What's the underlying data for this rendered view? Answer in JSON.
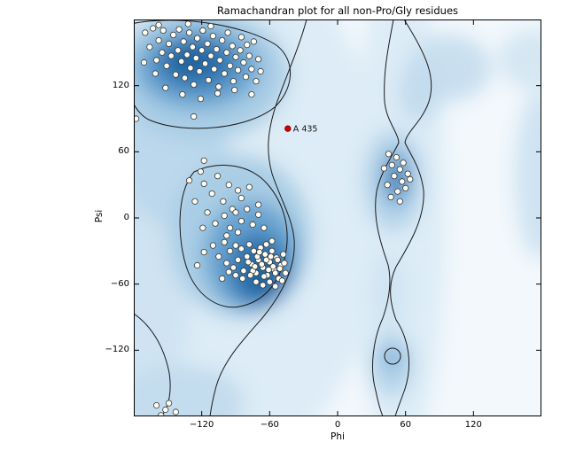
{
  "figure": {
    "title": "Ramachandran plot for all non-Pro/Gly residues"
  },
  "chart_data": {
    "type": "scatter",
    "title": "Ramachandran plot for all non-Pro/Gly residues",
    "xlabel": "Phi",
    "ylabel": "Psi",
    "xlim": [
      -180,
      180
    ],
    "ylim": [
      -180,
      180
    ],
    "xticks": [
      {
        "v": -120,
        "label": "−120"
      },
      {
        "v": -60,
        "label": "−60"
      },
      {
        "v": 0,
        "label": "0"
      },
      {
        "v": 60,
        "label": "60"
      },
      {
        "v": 120,
        "label": "120"
      }
    ],
    "yticks": [
      {
        "v": 120,
        "label": "120"
      },
      {
        "v": 60,
        "label": "60"
      },
      {
        "v": 0,
        "label": "0"
      },
      {
        "v": -60,
        "label": "−60"
      },
      {
        "v": -120,
        "label": "−120"
      }
    ],
    "grid": false,
    "legend": "none",
    "background": "Blues density colormap (favored/allowed Ramachandran regions) with black contour outlines",
    "colors": {
      "point_fill": "#fffef5",
      "point_stroke": "#3a3a3a",
      "contour_color": "#1a1a1a",
      "density_dark": "#1f639f",
      "density_mid": "#67a3d0",
      "density_light": "#ddecf6",
      "outlier_fill": "#d40000",
      "outlier_stroke": "#7a0000"
    },
    "points": [
      [
        -170,
        168
      ],
      [
        -166,
        155
      ],
      [
        -163,
        172
      ],
      [
        -160,
        143
      ],
      [
        -158,
        161
      ],
      [
        -155,
        150
      ],
      [
        -154,
        170
      ],
      [
        -151,
        138
      ],
      [
        -149,
        158
      ],
      [
        -147,
        147
      ],
      [
        -145,
        166
      ],
      [
        -143,
        130
      ],
      [
        -141,
        152
      ],
      [
        -140,
        171
      ],
      [
        -138,
        142
      ],
      [
        -136,
        160
      ],
      [
        -135,
        127
      ],
      [
        -133,
        148
      ],
      [
        -131,
        168
      ],
      [
        -130,
        136
      ],
      [
        -128,
        155
      ],
      [
        -127,
        121
      ],
      [
        -125,
        145
      ],
      [
        -124,
        163
      ],
      [
        -122,
        133
      ],
      [
        -120,
        152
      ],
      [
        -119,
        170
      ],
      [
        -117,
        140
      ],
      [
        -115,
        158
      ],
      [
        -114,
        125
      ],
      [
        -112,
        147
      ],
      [
        -110,
        165
      ],
      [
        -109,
        135
      ],
      [
        -107,
        153
      ],
      [
        -105,
        119
      ],
      [
        -104,
        143
      ],
      [
        -102,
        161
      ],
      [
        -100,
        131
      ],
      [
        -98,
        150
      ],
      [
        -97,
        168
      ],
      [
        -95,
        138
      ],
      [
        -93,
        156
      ],
      [
        -92,
        124
      ],
      [
        -90,
        146
      ],
      [
        -88,
        134
      ],
      [
        -86,
        152
      ],
      [
        -85,
        164
      ],
      [
        -83,
        141
      ],
      [
        -81,
        128
      ],
      [
        -80,
        157
      ],
      [
        -78,
        147
      ],
      [
        -76,
        135
      ],
      [
        -74,
        160
      ],
      [
        -72,
        124
      ],
      [
        -70,
        144
      ],
      [
        -68,
        133
      ],
      [
        -152,
        118
      ],
      [
        -137,
        112
      ],
      [
        -121,
        108
      ],
      [
        -106,
        113
      ],
      [
        -91,
        116
      ],
      [
        -76,
        112
      ],
      [
        -161,
        131
      ],
      [
        -171,
        141
      ],
      [
        -158,
        175
      ],
      [
        -132,
        176
      ],
      [
        -112,
        174
      ],
      [
        -127,
        92
      ],
      [
        -178,
        90
      ],
      [
        -121,
        42
      ],
      [
        -106,
        38
      ],
      [
        -96,
        30
      ],
      [
        -88,
        25
      ],
      [
        -111,
        22
      ],
      [
        -101,
        15
      ],
      [
        -93,
        8
      ],
      [
        -85,
        18
      ],
      [
        -78,
        28
      ],
      [
        -70,
        12
      ],
      [
        -131,
        34
      ],
      [
        -126,
        15
      ],
      [
        -118,
        31
      ],
      [
        -118,
        52
      ],
      [
        -115,
        5
      ],
      [
        -108,
        -5
      ],
      [
        -100,
        2
      ],
      [
        -95,
        -9
      ],
      [
        -90,
        5
      ],
      [
        -85,
        -3
      ],
      [
        -80,
        8
      ],
      [
        -75,
        -6
      ],
      [
        -70,
        3
      ],
      [
        -65,
        -9
      ],
      [
        -98,
        -16
      ],
      [
        -88,
        -13
      ],
      [
        -119,
        -9
      ],
      [
        -110,
        -25
      ],
      [
        -105,
        -35
      ],
      [
        -100,
        -22
      ],
      [
        -98,
        -41
      ],
      [
        -95,
        -30
      ],
      [
        -92,
        -45
      ],
      [
        -90,
        -25
      ],
      [
        -88,
        -38
      ],
      [
        -85,
        -28
      ],
      [
        -83,
        -48
      ],
      [
        -80,
        -35
      ],
      [
        -78,
        -24
      ],
      [
        -76,
        -42
      ],
      [
        -74,
        -30
      ],
      [
        -72,
        -50
      ],
      [
        -70,
        -38
      ],
      [
        -68,
        -27
      ],
      [
        -66,
        -45
      ],
      [
        -64,
        -33
      ],
      [
        -62,
        -52
      ],
      [
        -60,
        -40
      ],
      [
        -58,
        -30
      ],
      [
        -56,
        -47
      ],
      [
        -54,
        -36
      ],
      [
        -52,
        -55
      ],
      [
        -50,
        -43
      ],
      [
        -48,
        -33
      ],
      [
        -46,
        -50
      ],
      [
        -63,
        -38
      ],
      [
        -67,
        -42
      ],
      [
        -71,
        -35
      ],
      [
        -75,
        -48
      ],
      [
        -79,
        -40
      ],
      [
        -57,
        -44
      ],
      [
        -53,
        -38
      ],
      [
        -61,
        -47
      ],
      [
        -65,
        -53
      ],
      [
        -69,
        -31
      ],
      [
        -73,
        -44
      ],
      [
        -77,
        -52
      ],
      [
        -59,
        -35
      ],
      [
        -55,
        -50
      ],
      [
        -51,
        -46
      ],
      [
        -47,
        -41
      ],
      [
        -84,
        -55
      ],
      [
        -90,
        -52
      ],
      [
        -96,
        -49
      ],
      [
        -102,
        -55
      ],
      [
        -63,
        -24
      ],
      [
        -58,
        -21
      ],
      [
        -118,
        -31
      ],
      [
        -124,
        -43
      ],
      [
        -60,
        -58
      ],
      [
        -66,
        -61
      ],
      [
        -72,
        -58
      ],
      [
        -55,
        -62
      ],
      [
        -49,
        -57
      ],
      [
        45,
        58
      ],
      [
        52,
        55
      ],
      [
        58,
        50
      ],
      [
        48,
        48
      ],
      [
        55,
        44
      ],
      [
        62,
        40
      ],
      [
        50,
        38
      ],
      [
        57,
        33
      ],
      [
        44,
        30
      ],
      [
        60,
        27
      ],
      [
        53,
        24
      ],
      [
        47,
        19
      ],
      [
        64,
        35
      ],
      [
        55,
        15
      ],
      [
        41,
        45
      ],
      [
        -160,
        -170
      ],
      [
        -152,
        -174
      ],
      [
        -156,
        -179
      ],
      [
        -149,
        -168
      ],
      [
        -143,
        -176
      ]
    ],
    "outlier": {
      "label": "A 435",
      "phi": -44,
      "psi": 81
    }
  }
}
